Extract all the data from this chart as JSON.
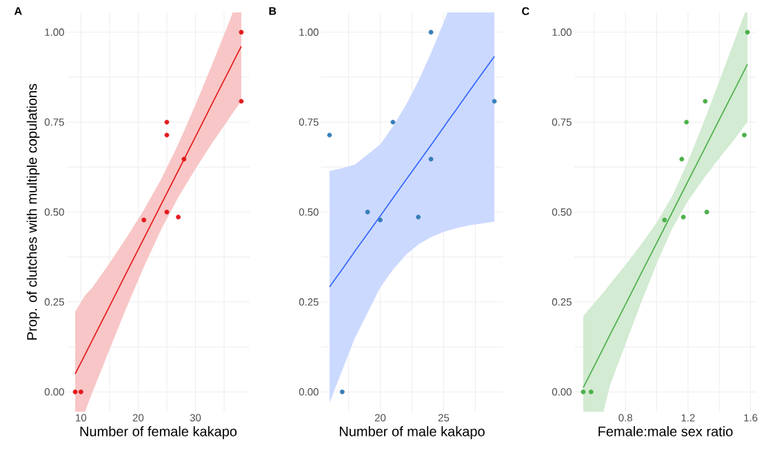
{
  "chart_data": [
    {
      "type": "scatter",
      "title": "A",
      "xlabel": "Number of female kakapo",
      "ylabel": "Prop. of clutches with multiple copulations",
      "xlim": [
        7.55,
        39.45
      ],
      "ylim": [
        -0.055,
        1.055
      ],
      "xticks": [
        10,
        {
          "value": 15,
          "label": null
        },
        20,
        {
          "value": 25,
          "label": null
        },
        30,
        {
          "value": 35,
          "label": null
        }
      ],
      "yticks": [
        {
          "value": 0,
          "label": "0.00"
        },
        {
          "value": 0.125,
          "label": null
        },
        {
          "value": 0.25,
          "label": "0.25"
        },
        {
          "value": 0.375,
          "label": null
        },
        {
          "value": 0.5,
          "label": "0.50"
        },
        {
          "value": 0.625,
          "label": null
        },
        {
          "value": 0.75,
          "label": "0.75"
        },
        {
          "value": 0.875,
          "label": null
        },
        {
          "value": 1,
          "label": "1.00"
        }
      ],
      "grid": true,
      "series": [
        {
          "type": "line",
          "color": "#e41a1c",
          "marker": "none",
          "line_style": "solid",
          "x": [
            9,
            10.7,
            12,
            15,
            18,
            21,
            24,
            27,
            30,
            33,
            36,
            36.5,
            38
          ],
          "values": [
            0.05,
            0.103,
            0.144,
            0.238,
            0.333,
            0.427,
            0.521,
            0.615,
            0.709,
            0.804,
            0.898,
            0.914,
            0.961
          ],
          "lower": [
            -0.055,
            -0.055,
            -0.002,
            0.118,
            0.236,
            0.348,
            0.451,
            0.541,
            0.62,
            0.694,
            0.763,
            0.775,
            0.808
          ],
          "upper": [
            0.223,
            0.268,
            0.29,
            0.358,
            0.43,
            0.506,
            0.591,
            0.689,
            0.798,
            0.914,
            1.033,
            1.055,
            1.055
          ]
        },
        {
          "color": "#e41a1c",
          "marker": "circle",
          "x": [
            9,
            10,
            21,
            25,
            25,
            25,
            27,
            28,
            38,
            38
          ],
          "values": [
            0,
            0,
            0.478,
            0.75,
            0.714,
            0.5,
            0.486,
            0.647,
            1.0,
            0.808
          ]
        }
      ]
    },
    {
      "type": "scatter",
      "title": "B",
      "xlabel": "Number of male kakapo",
      "xlim": [
        15.35,
        29.65
      ],
      "ylim": [
        -0.055,
        1.055
      ],
      "xticks": [
        {
          "value": 17.5,
          "label": null
        },
        20,
        {
          "value": 22.5,
          "label": null
        },
        25,
        {
          "value": 27.5,
          "label": null
        }
      ],
      "yticks": [
        {
          "value": 0,
          "label": "0.00"
        },
        {
          "value": 0.125,
          "label": null
        },
        {
          "value": 0.25,
          "label": "0.25"
        },
        {
          "value": 0.375,
          "label": null
        },
        {
          "value": 0.5,
          "label": "0.50"
        },
        {
          "value": 0.625,
          "label": null
        },
        {
          "value": 0.75,
          "label": "0.75"
        },
        {
          "value": 0.875,
          "label": null
        },
        {
          "value": 1,
          "label": "1.00"
        }
      ],
      "grid": true,
      "series": [
        {
          "type": "line",
          "color": "#3366ff",
          "marker": "none",
          "line_style": "solid",
          "x": [
            16,
            17,
            18,
            19,
            20,
            21,
            22,
            23,
            24,
            25,
            25.3,
            26,
            27,
            28,
            29
          ],
          "values": [
            0.292,
            0.341,
            0.391,
            0.44,
            0.489,
            0.539,
            0.588,
            0.637,
            0.686,
            0.736,
            0.751,
            0.785,
            0.835,
            0.884,
            0.933
          ],
          "lower": [
            -0.03,
            0.06,
            0.15,
            0.22,
            0.29,
            0.34,
            0.38,
            0.41,
            0.43,
            0.445,
            0.448,
            0.455,
            0.463,
            0.468,
            0.473
          ],
          "upper": [
            0.614,
            0.622,
            0.632,
            0.66,
            0.688,
            0.738,
            0.796,
            0.864,
            0.942,
            1.027,
            1.055,
            1.055,
            1.055,
            1.055,
            1.055
          ]
        },
        {
          "color": "#377eb8",
          "marker": "circle",
          "x": [
            16,
            17,
            19,
            20,
            21,
            23,
            24,
            24,
            29
          ],
          "values": [
            0.714,
            0,
            0.5,
            0.478,
            0.75,
            0.486,
            1.0,
            0.647,
            0.808
          ]
        }
      ]
    },
    {
      "type": "scatter",
      "title": "C",
      "xlabel": "Female:male sex ratio",
      "xlim": [
        0.473,
        1.637
      ],
      "ylim": [
        -0.055,
        1.055
      ],
      "xticks": [
        {
          "value": 0.6,
          "label": null
        },
        {
          "value": 0.8,
          "label": "0.8"
        },
        {
          "value": 1.0,
          "label": null
        },
        {
          "value": 1.2,
          "label": "1.2"
        },
        {
          "value": 1.4,
          "label": null
        },
        {
          "value": 1.6,
          "label": "1.6"
        }
      ],
      "yticks": [
        {
          "value": 0,
          "label": "0.00"
        },
        {
          "value": 0.125,
          "label": null
        },
        {
          "value": 0.25,
          "label": "0.25"
        },
        {
          "value": 0.375,
          "label": null
        },
        {
          "value": 0.5,
          "label": "0.50"
        },
        {
          "value": 0.625,
          "label": null
        },
        {
          "value": 0.75,
          "label": "0.75"
        },
        {
          "value": 0.875,
          "label": null
        },
        {
          "value": 1,
          "label": "1.00"
        }
      ],
      "grid": true,
      "series": [
        {
          "type": "line",
          "color": "#4daf4a",
          "marker": "none",
          "line_style": "solid",
          "x": [
            0.53,
            0.66,
            0.7,
            0.8,
            0.9,
            1.0,
            1.1,
            1.2,
            1.3,
            1.4,
            1.5,
            1.565,
            1.58
          ],
          "values": [
            0.012,
            0.123,
            0.158,
            0.243,
            0.329,
            0.414,
            0.5,
            0.586,
            0.671,
            0.757,
            0.842,
            0.898,
            0.911
          ],
          "lower": [
            -0.055,
            -0.055,
            0.017,
            0.133,
            0.248,
            0.357,
            0.455,
            0.531,
            0.593,
            0.65,
            0.704,
            0.742,
            0.75
          ],
          "upper": [
            0.211,
            0.277,
            0.299,
            0.353,
            0.41,
            0.471,
            0.545,
            0.641,
            0.749,
            0.864,
            0.98,
            1.055,
            1.055
          ]
        },
        {
          "color": "#4daf4a",
          "marker": "circle",
          "x": [
            0.53,
            0.58,
            1.05,
            1.16,
            1.17,
            1.19,
            1.31,
            1.32,
            1.56,
            1.58
          ],
          "values": [
            0,
            0,
            0.478,
            0.647,
            0.486,
            0.75,
            0.808,
            0.5,
            0.714,
            1.0
          ]
        }
      ]
    }
  ]
}
